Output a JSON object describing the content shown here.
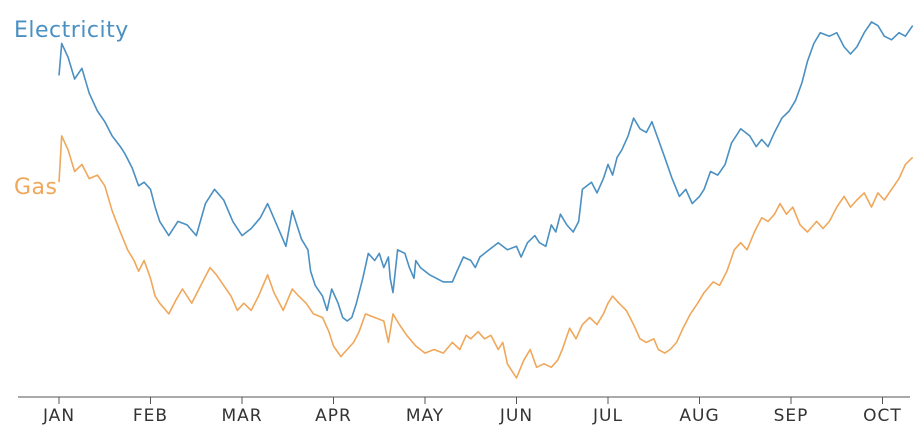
{
  "chart_data": {
    "type": "line",
    "title": "",
    "xlabel": "",
    "ylabel": "",
    "categories": [
      "JAN",
      "FEB",
      "MAR",
      "APR",
      "MAY",
      "JUN",
      "JUL",
      "AUG",
      "SEP",
      "OCT"
    ],
    "y_range": [
      0,
      100
    ],
    "grid": false,
    "legend": "inline-left",
    "series": [
      {
        "name": "Electricity",
        "color": "#4a90c2",
        "points": [
          [
            0.0,
            85
          ],
          [
            0.03,
            94
          ],
          [
            0.1,
            90
          ],
          [
            0.17,
            84
          ],
          [
            0.25,
            87
          ],
          [
            0.33,
            80
          ],
          [
            0.42,
            75
          ],
          [
            0.5,
            72
          ],
          [
            0.58,
            68
          ],
          [
            0.67,
            65
          ],
          [
            0.72,
            63
          ],
          [
            0.8,
            59
          ],
          [
            0.87,
            54
          ],
          [
            0.93,
            55
          ],
          [
            1.0,
            53
          ],
          [
            1.05,
            48
          ],
          [
            1.1,
            44
          ],
          [
            1.2,
            40
          ],
          [
            1.3,
            44
          ],
          [
            1.4,
            43
          ],
          [
            1.5,
            40
          ],
          [
            1.6,
            49
          ],
          [
            1.7,
            53
          ],
          [
            1.8,
            50
          ],
          [
            1.9,
            44
          ],
          [
            2.0,
            40
          ],
          [
            2.1,
            42
          ],
          [
            2.2,
            45
          ],
          [
            2.28,
            49
          ],
          [
            2.38,
            43
          ],
          [
            2.48,
            37
          ],
          [
            2.55,
            47
          ],
          [
            2.65,
            39
          ],
          [
            2.72,
            36
          ],
          [
            2.75,
            30
          ],
          [
            2.8,
            26
          ],
          [
            2.88,
            23
          ],
          [
            2.93,
            19
          ],
          [
            2.98,
            25
          ],
          [
            3.05,
            21
          ],
          [
            3.1,
            17
          ],
          [
            3.15,
            16
          ],
          [
            3.2,
            17
          ],
          [
            3.25,
            21
          ],
          [
            3.32,
            28
          ],
          [
            3.38,
            35
          ],
          [
            3.45,
            33
          ],
          [
            3.5,
            35
          ],
          [
            3.55,
            31
          ],
          [
            3.6,
            34
          ],
          [
            3.62,
            28
          ],
          [
            3.65,
            24
          ],
          [
            3.7,
            36
          ],
          [
            3.78,
            35
          ],
          [
            3.83,
            31
          ],
          [
            3.88,
            28
          ],
          [
            3.9,
            33
          ],
          [
            3.95,
            31
          ],
          [
            4.05,
            29
          ],
          [
            4.2,
            27
          ],
          [
            4.3,
            27
          ],
          [
            4.35,
            30
          ],
          [
            4.42,
            34
          ],
          [
            4.5,
            33
          ],
          [
            4.55,
            31
          ],
          [
            4.6,
            34
          ],
          [
            4.7,
            36
          ],
          [
            4.8,
            38
          ],
          [
            4.9,
            36
          ],
          [
            5.0,
            37
          ],
          [
            5.05,
            34
          ],
          [
            5.12,
            38
          ],
          [
            5.2,
            40
          ],
          [
            5.25,
            38
          ],
          [
            5.32,
            37
          ],
          [
            5.38,
            43
          ],
          [
            5.43,
            41
          ],
          [
            5.48,
            46
          ],
          [
            5.55,
            43
          ],
          [
            5.62,
            41
          ],
          [
            5.68,
            44
          ],
          [
            5.72,
            53
          ],
          [
            5.82,
            55
          ],
          [
            5.88,
            52
          ],
          [
            5.95,
            56
          ],
          [
            6.0,
            60
          ],
          [
            6.05,
            57
          ],
          [
            6.1,
            62
          ],
          [
            6.15,
            64
          ],
          [
            6.22,
            68
          ],
          [
            6.28,
            73
          ],
          [
            6.35,
            70
          ],
          [
            6.42,
            69
          ],
          [
            6.48,
            72
          ],
          [
            6.55,
            67
          ],
          [
            6.62,
            62
          ],
          [
            6.7,
            56
          ],
          [
            6.78,
            51
          ],
          [
            6.85,
            53
          ],
          [
            6.92,
            49
          ],
          [
            7.0,
            51
          ],
          [
            7.05,
            53
          ],
          [
            7.12,
            58
          ],
          [
            7.2,
            57
          ],
          [
            7.28,
            60
          ],
          [
            7.35,
            66
          ],
          [
            7.45,
            70
          ],
          [
            7.55,
            68
          ],
          [
            7.62,
            65
          ],
          [
            7.68,
            67
          ],
          [
            7.75,
            65
          ],
          [
            7.82,
            69
          ],
          [
            7.9,
            73
          ],
          [
            7.98,
            75
          ],
          [
            8.05,
            78
          ],
          [
            8.12,
            83
          ],
          [
            8.18,
            89
          ],
          [
            8.25,
            94
          ],
          [
            8.32,
            97
          ],
          [
            8.42,
            96
          ],
          [
            8.5,
            97
          ],
          [
            8.58,
            93
          ],
          [
            8.65,
            91
          ],
          [
            8.72,
            93
          ],
          [
            8.8,
            97
          ],
          [
            8.88,
            100
          ],
          [
            8.95,
            99
          ],
          [
            9.02,
            96
          ],
          [
            9.1,
            95
          ],
          [
            9.18,
            97
          ],
          [
            9.25,
            96
          ],
          [
            9.33,
            99
          ]
        ]
      },
      {
        "name": "Gas",
        "color": "#f0a75a",
        "points": [
          [
            0.0,
            55
          ],
          [
            0.03,
            68
          ],
          [
            0.1,
            64
          ],
          [
            0.17,
            58
          ],
          [
            0.25,
            60
          ],
          [
            0.33,
            56
          ],
          [
            0.42,
            57
          ],
          [
            0.5,
            54
          ],
          [
            0.58,
            47
          ],
          [
            0.67,
            41
          ],
          [
            0.75,
            36
          ],
          [
            0.82,
            33
          ],
          [
            0.87,
            30
          ],
          [
            0.93,
            33
          ],
          [
            1.0,
            28
          ],
          [
            1.05,
            23
          ],
          [
            1.1,
            21
          ],
          [
            1.2,
            18
          ],
          [
            1.28,
            22
          ],
          [
            1.35,
            25
          ],
          [
            1.45,
            21
          ],
          [
            1.55,
            26
          ],
          [
            1.65,
            31
          ],
          [
            1.72,
            29
          ],
          [
            1.8,
            26
          ],
          [
            1.88,
            23
          ],
          [
            1.95,
            19
          ],
          [
            2.02,
            21
          ],
          [
            2.1,
            19
          ],
          [
            2.18,
            23
          ],
          [
            2.28,
            29
          ],
          [
            2.35,
            24
          ],
          [
            2.45,
            19
          ],
          [
            2.55,
            25
          ],
          [
            2.62,
            23
          ],
          [
            2.7,
            21
          ],
          [
            2.78,
            18
          ],
          [
            2.88,
            17
          ],
          [
            2.95,
            13
          ],
          [
            3.0,
            9
          ],
          [
            3.08,
            6
          ],
          [
            3.15,
            8
          ],
          [
            3.22,
            10
          ],
          [
            3.28,
            13
          ],
          [
            3.35,
            18
          ],
          [
            3.45,
            17
          ],
          [
            3.55,
            16
          ],
          [
            3.6,
            10
          ],
          [
            3.65,
            18
          ],
          [
            3.72,
            15
          ],
          [
            3.8,
            12
          ],
          [
            3.9,
            9
          ],
          [
            4.0,
            7
          ],
          [
            4.1,
            8
          ],
          [
            4.2,
            7
          ],
          [
            4.3,
            10
          ],
          [
            4.38,
            8
          ],
          [
            4.45,
            12
          ],
          [
            4.5,
            11
          ],
          [
            4.58,
            13
          ],
          [
            4.65,
            11
          ],
          [
            4.72,
            12
          ],
          [
            4.8,
            8
          ],
          [
            4.85,
            10
          ],
          [
            4.9,
            4
          ],
          [
            4.95,
            2
          ],
          [
            5.0,
            0
          ],
          [
            5.08,
            5
          ],
          [
            5.15,
            8
          ],
          [
            5.22,
            3
          ],
          [
            5.3,
            4
          ],
          [
            5.38,
            3
          ],
          [
            5.45,
            5
          ],
          [
            5.5,
            8
          ],
          [
            5.58,
            14
          ],
          [
            5.65,
            11
          ],
          [
            5.72,
            15
          ],
          [
            5.8,
            17
          ],
          [
            5.88,
            15
          ],
          [
            5.95,
            18
          ],
          [
            6.0,
            21
          ],
          [
            6.05,
            23
          ],
          [
            6.12,
            21
          ],
          [
            6.2,
            19
          ],
          [
            6.28,
            15
          ],
          [
            6.35,
            11
          ],
          [
            6.42,
            10
          ],
          [
            6.5,
            11
          ],
          [
            6.55,
            8
          ],
          [
            6.62,
            7
          ],
          [
            6.68,
            8
          ],
          [
            6.75,
            10
          ],
          [
            6.82,
            14
          ],
          [
            6.9,
            18
          ],
          [
            6.98,
            21
          ],
          [
            7.05,
            24
          ],
          [
            7.15,
            27
          ],
          [
            7.22,
            26
          ],
          [
            7.3,
            30
          ],
          [
            7.38,
            36
          ],
          [
            7.45,
            38
          ],
          [
            7.52,
            36
          ],
          [
            7.6,
            41
          ],
          [
            7.68,
            45
          ],
          [
            7.75,
            44
          ],
          [
            7.82,
            46
          ],
          [
            7.88,
            49
          ],
          [
            7.95,
            46
          ],
          [
            8.02,
            48
          ],
          [
            8.1,
            43
          ],
          [
            8.18,
            41
          ],
          [
            8.28,
            44
          ],
          [
            8.35,
            42
          ],
          [
            8.42,
            44
          ],
          [
            8.5,
            48
          ],
          [
            8.58,
            51
          ],
          [
            8.65,
            48
          ],
          [
            8.72,
            50
          ],
          [
            8.8,
            52
          ],
          [
            8.88,
            48
          ],
          [
            8.95,
            52
          ],
          [
            9.02,
            50
          ],
          [
            9.1,
            53
          ],
          [
            9.18,
            56
          ],
          [
            9.25,
            60
          ],
          [
            9.33,
            62
          ]
        ]
      }
    ]
  }
}
